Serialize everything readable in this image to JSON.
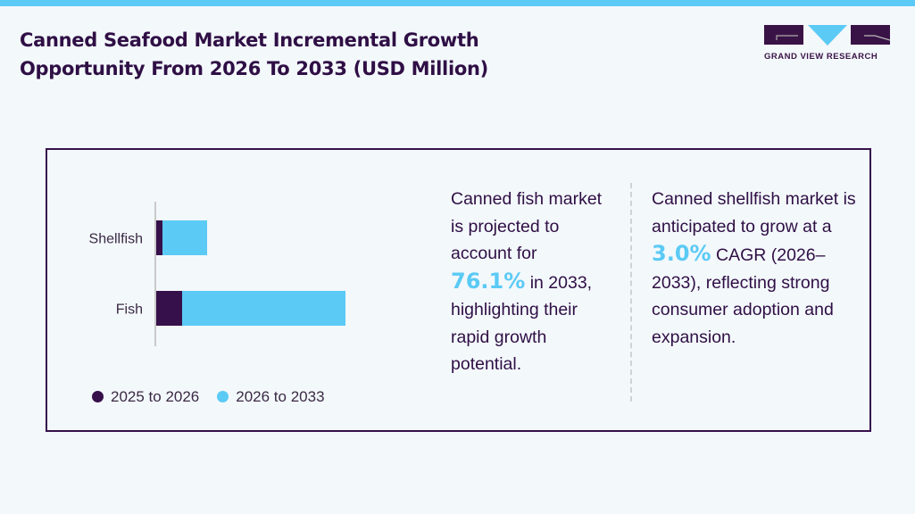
{
  "title": "Canned Seafood Market Incremental Growth Opportunity From 2026 To 2033 (USD Million)",
  "logo": {
    "text": "GRAND VIEW RESEARCH"
  },
  "colors": {
    "dark": "#36104a",
    "light": "#5bcaf5",
    "title": "#2f0f45"
  },
  "chart_data": {
    "type": "bar",
    "orientation": "horizontal",
    "stacked": true,
    "categories": [
      "Shellfish",
      "Fish"
    ],
    "series": [
      {
        "name": "2025 to 2026",
        "values": [
          8,
          30
        ],
        "color": "#36104a"
      },
      {
        "name": "2026 to 2033",
        "values": [
          50,
          183
        ],
        "color": "#5bcaf5"
      }
    ],
    "xaxis_visible": false,
    "grid": false,
    "legend": "bottom"
  },
  "insight1": {
    "pre": "Canned fish market is projected to account for",
    "value": "76.1%",
    "post": "in 2033, highlighting their rapid growth potential."
  },
  "insight2": {
    "pre": "Canned shellfish market is anticipated to grow at a",
    "value": "3.0%",
    "post": "CAGR (2026–2033), reflecting strong consumer adoption and expansion."
  }
}
